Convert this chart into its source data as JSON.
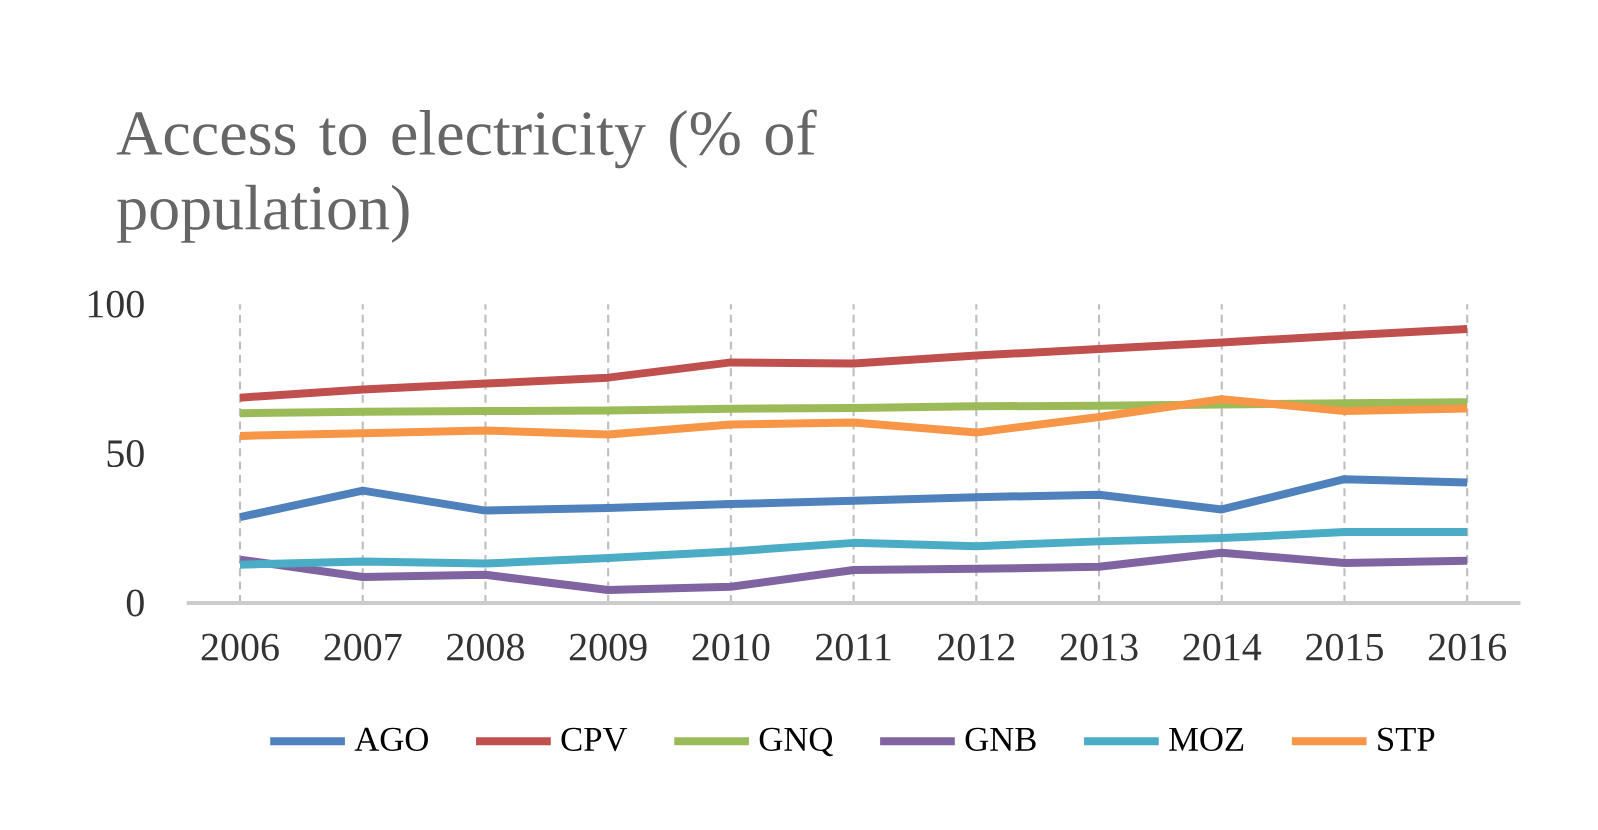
{
  "chart_data": {
    "type": "line",
    "title": "Access to electricity (% of population)",
    "x": [
      2006,
      2007,
      2008,
      2009,
      2010,
      2011,
      2012,
      2013,
      2014,
      2015,
      2016
    ],
    "xlim": [
      2006,
      2016
    ],
    "xticks": [
      2006,
      2007,
      2008,
      2009,
      2010,
      2011,
      2012,
      2013,
      2014,
      2015,
      2016
    ],
    "ylim": [
      0,
      100
    ],
    "yticks": [
      0,
      50,
      100
    ],
    "grid": "x",
    "legend": "bottom",
    "marker": "none",
    "line_style": "solid",
    "series": [
      {
        "name": "AGO",
        "color": "#4f81bd",
        "values": [
          28.7,
          37.6,
          30.9,
          31.8,
          33.1,
          34.2,
          35.4,
          36.2,
          31.3,
          41.4,
          40.3
        ]
      },
      {
        "name": "CPV",
        "color": "#c0504d",
        "values": [
          68.7,
          71.4,
          73.4,
          75.4,
          80.5,
          80.1,
          82.8,
          85.0,
          87.2,
          89.5,
          91.7
        ]
      },
      {
        "name": "GNQ",
        "color": "#9bbb59",
        "values": [
          63.5,
          64.0,
          64.2,
          64.4,
          65.0,
          65.2,
          65.8,
          66.0,
          66.4,
          66.8,
          67.2
        ]
      },
      {
        "name": "GNB",
        "color": "#8064a2",
        "values": [
          14.5,
          8.7,
          9.4,
          4.3,
          5.4,
          11.0,
          11.4,
          12.1,
          16.8,
          13.4,
          14.1
        ]
      },
      {
        "name": "MOZ",
        "color": "#4bacc6",
        "values": [
          12.8,
          13.9,
          13.2,
          15.0,
          17.2,
          20.1,
          19.0,
          20.6,
          21.7,
          23.7,
          23.7
        ]
      },
      {
        "name": "STP",
        "color": "#f79646",
        "values": [
          55.9,
          56.8,
          57.7,
          56.4,
          59.7,
          60.4,
          57.0,
          62.2,
          68.2,
          64.2,
          65.1
        ]
      }
    ]
  }
}
